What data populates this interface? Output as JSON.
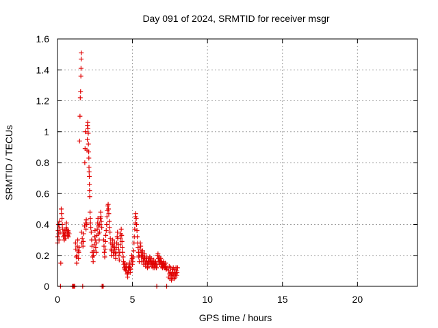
{
  "chart_data": {
    "type": "scatter",
    "title": "Day 091 of 2024, SRMTID for receiver msgr",
    "xlabel": "GPS time / hours",
    "ylabel": "SRMTID / TECUs",
    "xlim": [
      0,
      24
    ],
    "ylim": [
      0,
      1.6
    ],
    "xticks": [
      0,
      5,
      10,
      15,
      20
    ],
    "xtick_labels": [
      "0",
      "5",
      "10",
      "15",
      "20"
    ],
    "yticks": [
      0,
      0.2,
      0.4,
      0.6,
      0.8,
      1.0,
      1.2,
      1.4,
      1.6
    ],
    "ytick_labels": [
      "0",
      "0.2",
      "0.4",
      "0.6",
      "0.8",
      "1",
      "1.2",
      "1.4",
      "1.6"
    ],
    "grid": true,
    "marker": "+",
    "color": "#e00000",
    "series": [
      {
        "name": "msgr",
        "points": [
          [
            0.0,
            0.28
          ],
          [
            0.02,
            0.32
          ],
          [
            0.04,
            0.36
          ],
          [
            0.06,
            0.4
          ],
          [
            0.08,
            0.34
          ],
          [
            0.1,
            0.3
          ],
          [
            0.12,
            0.38
          ],
          [
            0.15,
            0.42
          ],
          [
            0.18,
            0.35
          ],
          [
            0.2,
            0.0
          ],
          [
            0.22,
            0.15
          ],
          [
            0.25,
            0.5
          ],
          [
            0.27,
            0.47
          ],
          [
            0.3,
            0.44
          ],
          [
            0.32,
            0.4
          ],
          [
            0.35,
            0.37
          ],
          [
            0.38,
            0.34
          ],
          [
            0.4,
            0.32
          ],
          [
            0.43,
            0.35
          ],
          [
            0.45,
            0.3
          ],
          [
            0.48,
            0.33
          ],
          [
            0.5,
            0.36
          ],
          [
            0.52,
            0.31
          ],
          [
            0.55,
            0.34
          ],
          [
            0.58,
            0.38
          ],
          [
            0.6,
            0.41
          ],
          [
            0.62,
            0.37
          ],
          [
            0.65,
            0.35
          ],
          [
            0.68,
            0.33
          ],
          [
            0.7,
            0.36
          ],
          [
            0.72,
            0.32
          ],
          [
            0.75,
            0.35
          ],
          [
            0.78,
            0.34
          ],
          [
            1.0,
            0.0
          ],
          [
            1.05,
            0.0
          ],
          [
            1.1,
            0.0
          ],
          [
            1.15,
            0.0
          ],
          [
            1.2,
            0.28
          ],
          [
            1.22,
            0.24
          ],
          [
            1.25,
            0.19
          ],
          [
            1.28,
            0.15
          ],
          [
            1.3,
            0.2
          ],
          [
            1.32,
            0.26
          ],
          [
            1.35,
            0.3
          ],
          [
            1.38,
            0.23
          ],
          [
            1.4,
            0.18
          ],
          [
            1.42,
            0.22
          ],
          [
            1.45,
            0.25
          ],
          [
            1.47,
            0.94
          ],
          [
            1.5,
            1.1
          ],
          [
            1.52,
            1.22
          ],
          [
            1.54,
            1.26
          ],
          [
            1.56,
            1.36
          ],
          [
            1.57,
            1.41
          ],
          [
            1.58,
            1.47
          ],
          [
            1.59,
            1.51
          ],
          [
            1.6,
            0.35
          ],
          [
            1.62,
            0.28
          ],
          [
            1.65,
            0.31
          ],
          [
            1.68,
            0.0
          ],
          [
            1.7,
            0.26
          ],
          [
            1.72,
            0.29
          ],
          [
            1.75,
            0.34
          ],
          [
            1.8,
            0.39
          ],
          [
            1.82,
            0.8
          ],
          [
            1.84,
            0.89
          ],
          [
            1.86,
            1.0
          ],
          [
            1.88,
            0.41
          ],
          [
            1.9,
            0.37
          ],
          [
            1.92,
            0.43
          ],
          [
            1.95,
            0.4
          ],
          [
            1.97,
            0.88
          ],
          [
            1.99,
            0.95
          ],
          [
            2.0,
            1.04
          ],
          [
            2.02,
            1.06
          ],
          [
            2.03,
            1.02
          ],
          [
            2.05,
            0.99
          ],
          [
            2.06,
            0.92
          ],
          [
            2.08,
            0.87
          ],
          [
            2.09,
            0.83
          ],
          [
            2.1,
            0.77
          ],
          [
            2.11,
            0.74
          ],
          [
            2.12,
            0.71
          ],
          [
            2.13,
            0.66
          ],
          [
            2.14,
            0.62
          ],
          [
            2.15,
            0.58
          ],
          [
            2.17,
            0.48
          ],
          [
            2.19,
            0.44
          ],
          [
            2.2,
            0.41
          ],
          [
            2.22,
            0.38
          ],
          [
            2.25,
            0.35
          ],
          [
            2.28,
            0.3
          ],
          [
            2.3,
            0.26
          ],
          [
            2.32,
            0.22
          ],
          [
            2.35,
            0.19
          ],
          [
            2.38,
            0.16
          ],
          [
            2.4,
            0.2
          ],
          [
            2.42,
            0.23
          ],
          [
            2.45,
            0.27
          ],
          [
            2.48,
            0.32
          ],
          [
            2.5,
            0.36
          ],
          [
            2.52,
            0.3
          ],
          [
            2.55,
            0.25
          ],
          [
            2.58,
            0.22
          ],
          [
            2.6,
            0.28
          ],
          [
            2.63,
            0.33
          ],
          [
            2.65,
            0.37
          ],
          [
            2.68,
            0.41
          ],
          [
            2.7,
            0.44
          ],
          [
            2.72,
            0.39
          ],
          [
            2.75,
            0.34
          ],
          [
            2.78,
            0.3
          ],
          [
            2.8,
            0.35
          ],
          [
            2.82,
            0.4
          ],
          [
            2.85,
            0.44
          ],
          [
            2.88,
            0.48
          ],
          [
            2.9,
            0.45
          ],
          [
            2.92,
            0.42
          ],
          [
            2.95,
            0.38
          ],
          [
            2.97,
            0.0
          ],
          [
            3.0,
            0.0
          ],
          [
            3.05,
            0.0
          ],
          [
            3.08,
            0.3
          ],
          [
            3.1,
            0.26
          ],
          [
            3.12,
            0.22
          ],
          [
            3.15,
            0.19
          ],
          [
            3.18,
            0.24
          ],
          [
            3.2,
            0.29
          ],
          [
            3.22,
            0.33
          ],
          [
            3.25,
            0.36
          ],
          [
            3.28,
            0.4
          ],
          [
            3.3,
            0.45
          ],
          [
            3.33,
            0.49
          ],
          [
            3.35,
            0.52
          ],
          [
            3.38,
            0.53
          ],
          [
            3.4,
            0.5
          ],
          [
            3.42,
            0.47
          ],
          [
            3.45,
            0.42
          ],
          [
            3.47,
            0.38
          ],
          [
            3.5,
            0.35
          ],
          [
            3.52,
            0.31
          ],
          [
            3.55,
            0.28
          ],
          [
            3.57,
            0.24
          ],
          [
            3.6,
            0.2
          ],
          [
            3.62,
            0.23
          ],
          [
            3.65,
            0.27
          ],
          [
            3.68,
            0.3
          ],
          [
            3.7,
            0.26
          ],
          [
            3.72,
            0.22
          ],
          [
            3.75,
            0.2
          ],
          [
            3.78,
            0.25
          ],
          [
            3.8,
            0.28
          ],
          [
            3.82,
            0.24
          ],
          [
            3.85,
            0.21
          ],
          [
            3.88,
            0.18
          ],
          [
            3.9,
            0.22
          ],
          [
            3.92,
            0.25
          ],
          [
            3.95,
            0.28
          ],
          [
            3.98,
            0.32
          ],
          [
            4.0,
            0.35
          ],
          [
            4.02,
            0.31
          ],
          [
            4.05,
            0.27
          ],
          [
            4.08,
            0.24
          ],
          [
            4.1,
            0.2
          ],
          [
            4.12,
            0.17
          ],
          [
            4.15,
            0.22
          ],
          [
            4.18,
            0.27
          ],
          [
            4.2,
            0.31
          ],
          [
            4.22,
            0.34
          ],
          [
            4.25,
            0.37
          ],
          [
            4.28,
            0.33
          ],
          [
            4.3,
            0.29
          ],
          [
            4.32,
            0.25
          ],
          [
            4.35,
            0.22
          ],
          [
            4.38,
            0.19
          ],
          [
            4.4,
            0.16
          ],
          [
            4.42,
            0.14
          ],
          [
            4.45,
            0.12
          ],
          [
            4.48,
            0.15
          ],
          [
            4.5,
            0.11
          ],
          [
            4.52,
            0.13
          ],
          [
            4.55,
            0.1
          ],
          [
            4.58,
            0.12
          ],
          [
            4.6,
            0.14
          ],
          [
            4.62,
            0.1
          ],
          [
            4.65,
            0.08
          ],
          [
            4.68,
            0.06
          ],
          [
            4.7,
            0.09
          ],
          [
            4.72,
            0.12
          ],
          [
            4.75,
            0.1
          ],
          [
            4.78,
            0.13
          ],
          [
            4.8,
            0.15
          ],
          [
            4.82,
            0.12
          ],
          [
            4.85,
            0.09
          ],
          [
            4.88,
            0.11
          ],
          [
            4.9,
            0.14
          ],
          [
            4.92,
            0.17
          ],
          [
            4.95,
            0.2
          ],
          [
            4.98,
            0.18
          ],
          [
            5.0,
            0.14
          ],
          [
            5.02,
            0.16
          ],
          [
            5.05,
            0.19
          ],
          [
            5.08,
            0.23
          ],
          [
            5.1,
            0.28
          ],
          [
            5.12,
            0.32
          ],
          [
            5.15,
            0.37
          ],
          [
            5.18,
            0.41
          ],
          [
            5.2,
            0.45
          ],
          [
            5.22,
            0.47
          ],
          [
            5.25,
            0.44
          ],
          [
            5.27,
            0.4
          ],
          [
            5.3,
            0.36
          ],
          [
            5.32,
            0.32
          ],
          [
            5.35,
            0.28
          ],
          [
            5.37,
            0.25
          ],
          [
            5.4,
            0.22
          ],
          [
            5.42,
            0.19
          ],
          [
            5.45,
            0.16
          ],
          [
            5.48,
            0.2
          ],
          [
            5.5,
            0.24
          ],
          [
            5.52,
            0.28
          ],
          [
            5.55,
            0.26
          ],
          [
            5.58,
            0.22
          ],
          [
            5.6,
            0.19
          ],
          [
            5.62,
            0.16
          ],
          [
            5.65,
            0.2
          ],
          [
            5.68,
            0.23
          ],
          [
            5.7,
            0.2
          ],
          [
            5.72,
            0.17
          ],
          [
            5.75,
            0.14
          ],
          [
            5.78,
            0.18
          ],
          [
            5.8,
            0.21
          ],
          [
            5.82,
            0.18
          ],
          [
            5.85,
            0.15
          ],
          [
            5.88,
            0.13
          ],
          [
            5.9,
            0.16
          ],
          [
            5.92,
            0.19
          ],
          [
            5.95,
            0.17
          ],
          [
            5.98,
            0.14
          ],
          [
            6.0,
            0.12
          ],
          [
            6.02,
            0.15
          ],
          [
            6.05,
            0.18
          ],
          [
            6.08,
            0.16
          ],
          [
            6.1,
            0.13
          ],
          [
            6.12,
            0.16
          ],
          [
            6.15,
            0.19
          ],
          [
            6.18,
            0.17
          ],
          [
            6.2,
            0.14
          ],
          [
            6.22,
            0.16
          ],
          [
            6.25,
            0.18
          ],
          [
            6.28,
            0.15
          ],
          [
            6.3,
            0.13
          ],
          [
            6.32,
            0.16
          ],
          [
            6.35,
            0.14
          ],
          [
            6.38,
            0.12
          ],
          [
            6.4,
            0.15
          ],
          [
            6.42,
            0.17
          ],
          [
            6.45,
            0.14
          ],
          [
            6.48,
            0.12
          ],
          [
            6.5,
            0.15
          ],
          [
            6.52,
            0.13
          ],
          [
            6.55,
            0.16
          ],
          [
            6.58,
            0.14
          ],
          [
            6.6,
            0.12
          ],
          [
            6.62,
            0.0
          ],
          [
            6.65,
            0.14
          ],
          [
            6.68,
            0.2
          ],
          [
            6.7,
            0.21
          ],
          [
            6.72,
            0.18
          ],
          [
            6.75,
            0.16
          ],
          [
            6.78,
            0.19
          ],
          [
            6.8,
            0.17
          ],
          [
            6.82,
            0.14
          ],
          [
            6.85,
            0.16
          ],
          [
            6.88,
            0.18
          ],
          [
            6.9,
            0.15
          ],
          [
            6.92,
            0.13
          ],
          [
            6.95,
            0.16
          ],
          [
            6.98,
            0.14
          ],
          [
            7.0,
            0.12
          ],
          [
            7.02,
            0.15
          ],
          [
            7.05,
            0.13
          ],
          [
            7.08,
            0.16
          ],
          [
            7.1,
            0.14
          ],
          [
            7.12,
            0.12
          ],
          [
            7.15,
            0.14
          ],
          [
            7.18,
            0.12
          ],
          [
            7.2,
            0.15
          ],
          [
            7.22,
            0.13
          ],
          [
            7.25,
            0.11
          ],
          [
            7.28,
            0.0
          ],
          [
            7.3,
            0.12
          ],
          [
            7.4,
            0.06
          ],
          [
            7.42,
            0.1
          ],
          [
            7.45,
            0.13
          ],
          [
            7.48,
            0.08
          ],
          [
            7.5,
            0.05
          ],
          [
            7.52,
            0.09
          ],
          [
            7.55,
            0.12
          ],
          [
            7.58,
            0.07
          ],
          [
            7.6,
            0.04
          ],
          [
            7.62,
            0.08
          ],
          [
            7.65,
            0.11
          ],
          [
            7.68,
            0.06
          ],
          [
            7.7,
            0.09
          ],
          [
            7.72,
            0.12
          ],
          [
            7.75,
            0.07
          ],
          [
            7.78,
            0.05
          ],
          [
            7.8,
            0.09
          ],
          [
            7.82,
            0.11
          ],
          [
            7.85,
            0.06
          ],
          [
            7.88,
            0.08
          ],
          [
            7.9,
            0.12
          ],
          [
            7.92,
            0.1
          ],
          [
            7.95,
            0.07
          ],
          [
            7.97,
            0.09
          ],
          [
            8.0,
            0.12
          ]
        ]
      }
    ]
  }
}
